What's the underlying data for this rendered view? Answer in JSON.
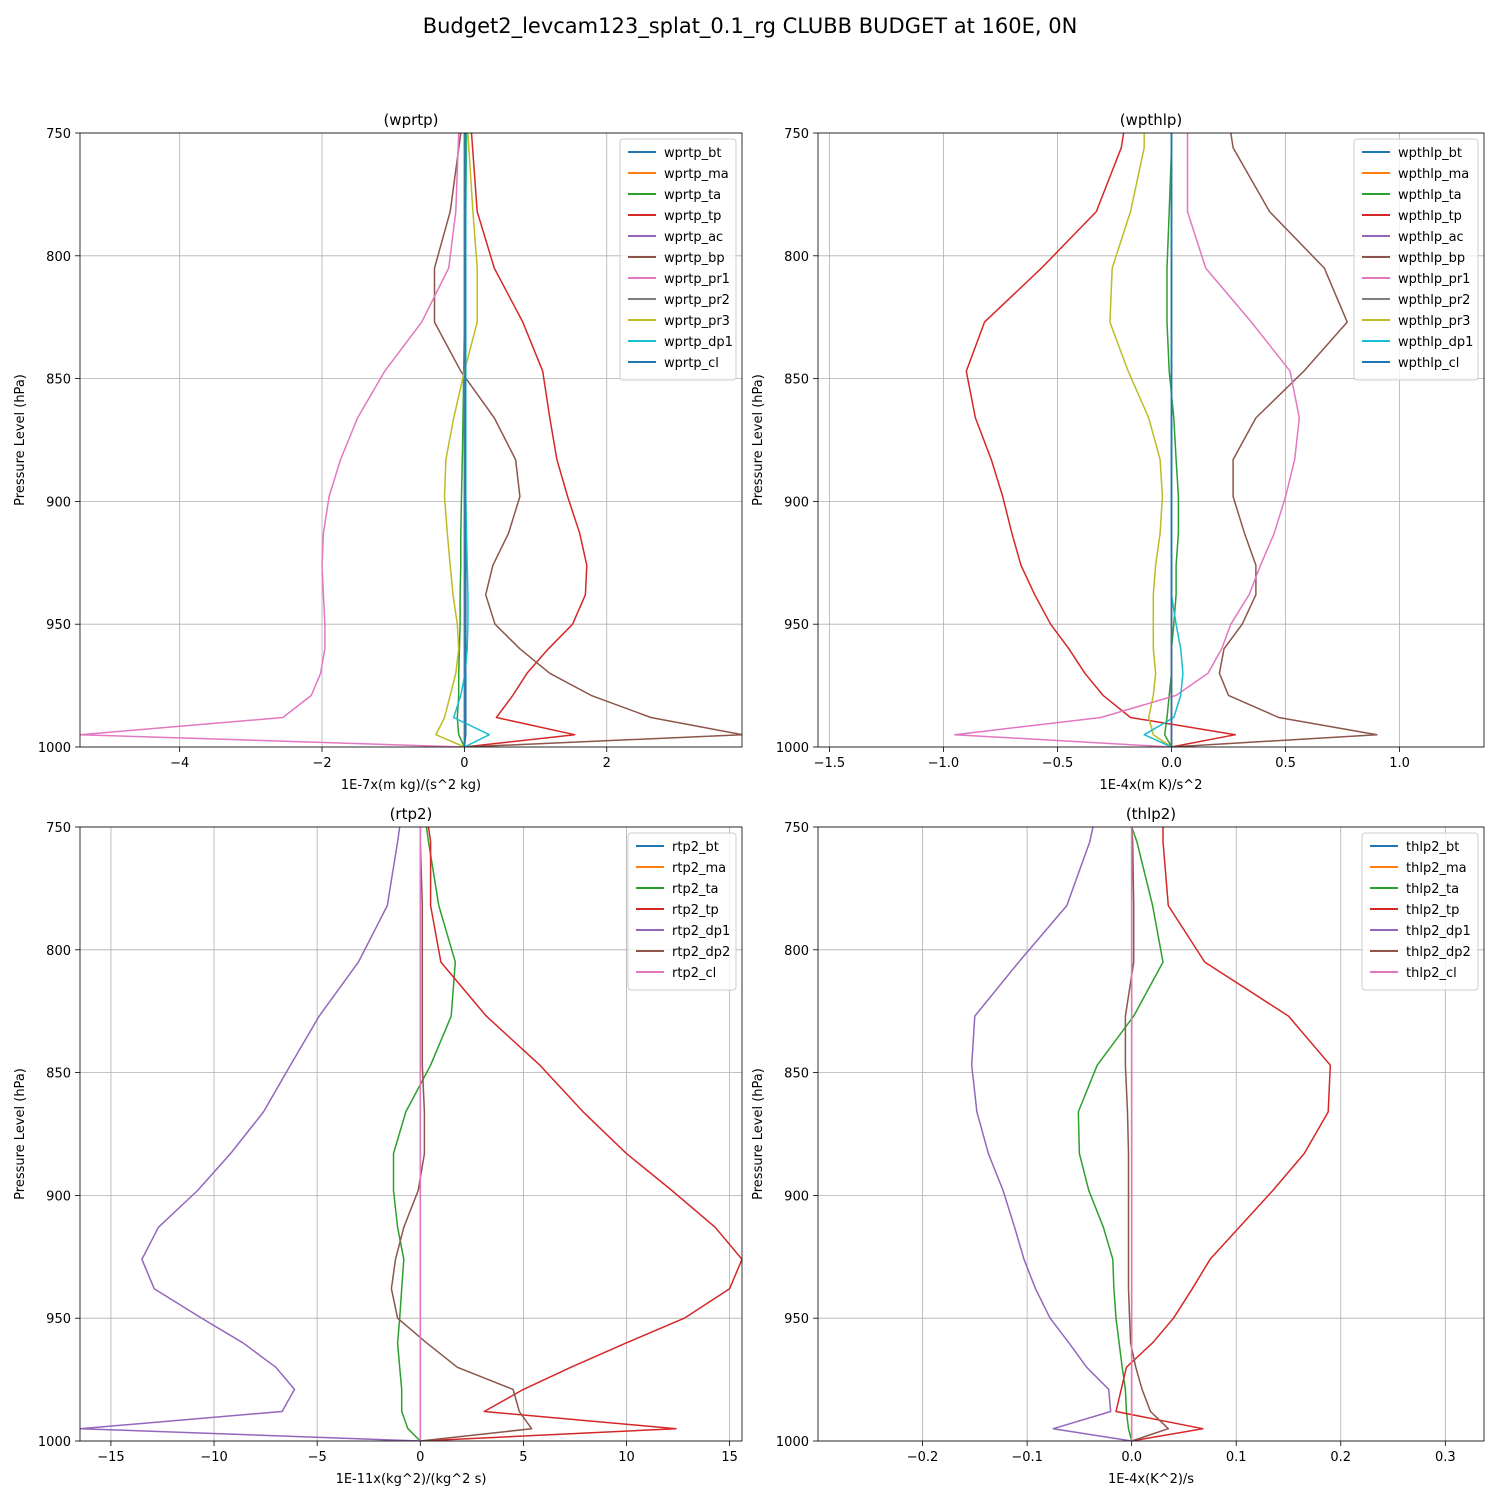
{
  "figure_title": "Budget2_levcam123_splat_0.1_rg CLUBB BUDGET at 160E, 0N",
  "chart_data": [
    {
      "type": "line",
      "title": "(wprtp)",
      "xlabel": "1E-7x(m kg)/(s^2 kg)",
      "ylabel": "Pressure Level (hPa)",
      "xlim": [
        -5.4,
        3.9
      ],
      "ylim": [
        1000,
        750
      ],
      "xticks": [
        -4,
        -2,
        0,
        2
      ],
      "yticks": [
        750,
        800,
        850,
        900,
        950,
        1000
      ],
      "grid": true,
      "legend": "top-right",
      "levels": [
        750,
        782,
        805,
        827,
        847,
        866,
        883,
        898,
        913,
        926,
        938,
        950,
        960,
        970,
        979,
        988,
        995,
        1000
      ],
      "series": [
        {
          "name": "wprtp_bt",
          "color": "#1f77b4",
          "values": [
            0.02,
            0.02,
            0.02,
            0.02,
            0.02,
            0.02,
            0.02,
            0.02,
            0.02,
            0.02,
            0.02,
            0.02,
            0.02,
            0.02,
            0.02,
            0.02,
            0.02,
            0.0
          ]
        },
        {
          "name": "wprtp_ma",
          "color": "#ff7f0e",
          "values": [
            0,
            0,
            0,
            0,
            0,
            0,
            0,
            0,
            0,
            0,
            0,
            0,
            0,
            0,
            0,
            0,
            0,
            0
          ]
        },
        {
          "name": "wprtp_ta",
          "color": "#2ca02c",
          "values": [
            0.03,
            0.02,
            0.01,
            0.0,
            -0.01,
            -0.02,
            -0.03,
            -0.04,
            -0.05,
            -0.05,
            -0.06,
            -0.06,
            -0.07,
            -0.08,
            -0.08,
            -0.1,
            -0.08,
            0.0
          ]
        },
        {
          "name": "wprtp_tp",
          "color": "#d62728",
          "values": [
            0.1,
            0.18,
            0.42,
            0.82,
            1.1,
            1.2,
            1.3,
            1.45,
            1.62,
            1.72,
            1.7,
            1.52,
            1.18,
            0.88,
            0.68,
            0.45,
            1.55,
            0.0
          ]
        },
        {
          "name": "wprtp_ac",
          "color": "#9467bd",
          "values": [
            0,
            0,
            0,
            0,
            0,
            0,
            0,
            0,
            0,
            0,
            0,
            0,
            0,
            0,
            0,
            0,
            0,
            0
          ]
        },
        {
          "name": "wprtp_bp",
          "color": "#8c564b",
          "values": [
            -0.05,
            -0.2,
            -0.42,
            -0.42,
            -0.05,
            0.42,
            0.72,
            0.78,
            0.62,
            0.4,
            0.3,
            0.43,
            0.78,
            1.2,
            1.78,
            2.62,
            3.9,
            0.0
          ]
        },
        {
          "name": "wprtp_pr1",
          "color": "#e377c2",
          "values": [
            -0.08,
            -0.12,
            -0.22,
            -0.6,
            -1.12,
            -1.5,
            -1.74,
            -1.9,
            -1.98,
            -2.0,
            -1.98,
            -1.96,
            -1.96,
            -2.02,
            -2.15,
            -2.55,
            -5.4,
            0.0
          ]
        },
        {
          "name": "wprtp_pr2",
          "color": "#7f7f7f",
          "values": [
            0,
            0,
            0,
            0,
            0,
            0,
            0,
            0,
            0,
            0,
            0,
            0,
            0,
            0,
            0,
            0,
            0,
            0
          ]
        },
        {
          "name": "wprtp_pr3",
          "color": "#bcbd22",
          "values": [
            0.05,
            0.12,
            0.18,
            0.18,
            0.0,
            -0.15,
            -0.26,
            -0.28,
            -0.24,
            -0.2,
            -0.16,
            -0.1,
            -0.08,
            -0.12,
            -0.2,
            -0.28,
            -0.4,
            0.0
          ]
        },
        {
          "name": "wprtp_dp1",
          "color": "#17becf",
          "values": [
            0.02,
            0.02,
            0.02,
            0.02,
            0.02,
            0.02,
            0.02,
            0.02,
            0.03,
            0.04,
            0.05,
            0.05,
            0.04,
            0.01,
            -0.05,
            -0.15,
            0.35,
            0.0
          ]
        },
        {
          "name": "wprtp_cl",
          "color": "#1f77b4",
          "values": [
            0.01,
            0.01,
            0.01,
            0.01,
            0.01,
            0.01,
            0.01,
            0.01,
            0.01,
            0.01,
            0.01,
            0.01,
            0.01,
            0.01,
            0.01,
            0.01,
            0.01,
            0.0
          ]
        }
      ]
    },
    {
      "type": "line",
      "title": "(wpthlp)",
      "xlabel": "1E-4x(m K)/s^2",
      "ylabel": "Pressure Level (hPa)",
      "xlim": [
        -1.55,
        1.37
      ],
      "ylim": [
        1000,
        750
      ],
      "xticks": [
        -1.5,
        -1.0,
        -0.5,
        0.0,
        0.5,
        1.0
      ],
      "yticks": [
        750,
        800,
        850,
        900,
        950,
        1000
      ],
      "grid": true,
      "legend": "top-right",
      "levels": [
        750,
        756,
        782,
        805,
        827,
        847,
        866,
        883,
        898,
        913,
        926,
        938,
        950,
        960,
        970,
        979,
        988,
        995,
        1000
      ],
      "series": [
        {
          "name": "wpthlp_bt",
          "color": "#1f77b4",
          "values": [
            0,
            0,
            0,
            0,
            0,
            0,
            0,
            0,
            0,
            0,
            0,
            0,
            0,
            0,
            0,
            0,
            0,
            0,
            0
          ]
        },
        {
          "name": "wpthlp_ma",
          "color": "#ff7f0e",
          "values": [
            0,
            0,
            0,
            0,
            0,
            0,
            0,
            0,
            0,
            0,
            0,
            0,
            0,
            0,
            0,
            0,
            0,
            0,
            0
          ]
        },
        {
          "name": "wpthlp_ta",
          "color": "#2ca02c",
          "values": [
            0.0,
            0.0,
            -0.01,
            -0.02,
            -0.02,
            -0.01,
            0.01,
            0.02,
            0.03,
            0.03,
            0.02,
            0.02,
            0.01,
            0.0,
            0.0,
            -0.01,
            -0.02,
            -0.03,
            0.0
          ]
        },
        {
          "name": "wpthlp_tp",
          "color": "#d62728",
          "values": [
            -0.21,
            -0.22,
            -0.33,
            -0.57,
            -0.82,
            -0.9,
            -0.86,
            -0.79,
            -0.74,
            -0.7,
            -0.66,
            -0.6,
            -0.53,
            -0.45,
            -0.38,
            -0.3,
            -0.18,
            0.28,
            0.0
          ]
        },
        {
          "name": "wpthlp_ac",
          "color": "#9467bd",
          "values": [
            0,
            0,
            0,
            0,
            0,
            0,
            0,
            0,
            0,
            0,
            0,
            0,
            0,
            0,
            0,
            0,
            0,
            0,
            0
          ]
        },
        {
          "name": "wpthlp_bp",
          "color": "#8c564b",
          "values": [
            0.26,
            0.27,
            0.43,
            0.67,
            0.77,
            0.58,
            0.37,
            0.27,
            0.27,
            0.32,
            0.37,
            0.37,
            0.31,
            0.23,
            0.21,
            0.25,
            0.47,
            0.9,
            0.0
          ]
        },
        {
          "name": "wpthlp_pr1",
          "color": "#e377c2",
          "values": [
            0.07,
            0.07,
            0.07,
            0.15,
            0.35,
            0.52,
            0.56,
            0.54,
            0.5,
            0.45,
            0.39,
            0.34,
            0.26,
            0.22,
            0.16,
            0.02,
            -0.31,
            -0.95,
            0.0
          ]
        },
        {
          "name": "wpthlp_pr2",
          "color": "#7f7f7f",
          "values": [
            0,
            0,
            0,
            0,
            0,
            0,
            0,
            0,
            0,
            0,
            0,
            0,
            0,
            0,
            0,
            0,
            0,
            0,
            0
          ]
        },
        {
          "name": "wpthlp_pr3",
          "color": "#bcbd22",
          "values": [
            -0.12,
            -0.12,
            -0.18,
            -0.26,
            -0.27,
            -0.19,
            -0.1,
            -0.05,
            -0.04,
            -0.05,
            -0.07,
            -0.08,
            -0.08,
            -0.08,
            -0.07,
            -0.08,
            -0.1,
            -0.08,
            0.0
          ]
        },
        {
          "name": "wpthlp_dp1",
          "color": "#17becf",
          "values": [
            0,
            0,
            0,
            0,
            0,
            0,
            0,
            0,
            0,
            0,
            0,
            0,
            0.02,
            0.04,
            0.05,
            0.04,
            0.01,
            -0.12,
            0.0
          ]
        },
        {
          "name": "wpthlp_cl",
          "color": "#1f77b4",
          "values": [
            0,
            0,
            0,
            0,
            0,
            0,
            0,
            0,
            0,
            0,
            0,
            0,
            0,
            0,
            0,
            0,
            0,
            0,
            0
          ]
        }
      ]
    },
    {
      "type": "line",
      "title": "(rtp2)",
      "xlabel": "1E-11x(kg^2)/(kg^2 s)",
      "ylabel": "Pressure Level (hPa)",
      "xlim": [
        -16.5,
        15.6
      ],
      "ylim": [
        1000,
        750
      ],
      "xticks": [
        -15,
        -10,
        -5,
        0,
        5,
        10,
        15
      ],
      "yticks": [
        750,
        800,
        850,
        900,
        950,
        1000
      ],
      "grid": true,
      "legend": "top-right",
      "levels": [
        750,
        756,
        782,
        805,
        827,
        847,
        866,
        883,
        898,
        913,
        926,
        938,
        950,
        960,
        970,
        979,
        988,
        995,
        1000
      ],
      "series": [
        {
          "name": "rtp2_bt",
          "color": "#1f77b4",
          "values": [
            0,
            0,
            0,
            0,
            0,
            0,
            0,
            0,
            0,
            0,
            0,
            0,
            0,
            0,
            0,
            0,
            0,
            0,
            0
          ]
        },
        {
          "name": "rtp2_ma",
          "color": "#ff7f0e",
          "values": [
            0,
            0,
            0,
            0,
            0,
            0,
            0,
            0,
            0,
            0,
            0,
            0,
            0,
            0,
            0,
            0,
            0,
            0,
            0
          ]
        },
        {
          "name": "rtp2_ta",
          "color": "#2ca02c",
          "values": [
            0.3,
            0.4,
            0.9,
            1.7,
            1.5,
            0.5,
            -0.7,
            -1.3,
            -1.3,
            -1.1,
            -0.8,
            -0.9,
            -1.0,
            -1.1,
            -1.0,
            -0.9,
            -0.9,
            -0.6,
            0.0
          ]
        },
        {
          "name": "rtp2_tp",
          "color": "#d62728",
          "values": [
            0.4,
            0.5,
            0.5,
            1.0,
            3.2,
            5.8,
            7.9,
            10.0,
            12.2,
            14.3,
            15.6,
            15.0,
            12.8,
            10.0,
            7.3,
            5.0,
            3.1,
            12.4,
            0.0
          ]
        },
        {
          "name": "rtp2_dp1",
          "color": "#9467bd",
          "values": [
            -1.0,
            -1.1,
            -1.6,
            -3.0,
            -4.9,
            -6.3,
            -7.6,
            -9.2,
            -10.8,
            -12.7,
            -13.5,
            -12.9,
            -10.6,
            -8.6,
            -7.0,
            -6.1,
            -6.7,
            -16.5,
            0.0
          ]
        },
        {
          "name": "rtp2_dp2",
          "color": "#8c564b",
          "values": [
            0.0,
            0.0,
            0.1,
            0.1,
            0.1,
            0.1,
            0.2,
            0.2,
            -0.1,
            -0.8,
            -1.2,
            -1.4,
            -1.1,
            0.3,
            1.8,
            4.5,
            4.8,
            5.4,
            0.0
          ]
        },
        {
          "name": "rtp2_cl",
          "color": "#e377c2",
          "values": [
            0,
            0,
            0,
            0,
            0,
            0,
            0,
            0,
            0,
            0,
            0,
            0,
            0,
            0,
            0,
            0,
            0,
            0,
            0
          ]
        }
      ]
    },
    {
      "type": "line",
      "title": "(thlp2)",
      "xlabel": "1E-4x(K^2)/s",
      "ylabel": "Pressure Level (hPa)",
      "xlim": [
        -0.3,
        0.337
      ],
      "ylim": [
        1000,
        750
      ],
      "xticks": [
        -0.2,
        -0.1,
        0.0,
        0.1,
        0.2,
        0.3
      ],
      "yticks": [
        750,
        800,
        850,
        900,
        950,
        1000
      ],
      "grid": true,
      "legend": "top-right",
      "levels": [
        750,
        756,
        782,
        805,
        827,
        847,
        866,
        883,
        898,
        913,
        926,
        938,
        950,
        960,
        970,
        979,
        988,
        995,
        1000
      ],
      "series": [
        {
          "name": "thlp2_bt",
          "color": "#1f77b4",
          "values": [
            0,
            0,
            0,
            0,
            0,
            0,
            0,
            0,
            0,
            0,
            0,
            0,
            0,
            0,
            0,
            0,
            0,
            0,
            0
          ]
        },
        {
          "name": "thlp2_ma",
          "color": "#ff7f0e",
          "values": [
            0,
            0,
            0,
            0,
            0,
            0,
            0,
            0,
            0,
            0,
            0,
            0,
            0,
            0,
            0,
            0,
            0,
            0,
            0
          ]
        },
        {
          "name": "thlp2_ta",
          "color": "#2ca02c",
          "values": [
            0.0,
            0.005,
            0.02,
            0.03,
            0.002,
            -0.033,
            -0.051,
            -0.05,
            -0.041,
            -0.027,
            -0.018,
            -0.017,
            -0.015,
            -0.012,
            -0.009,
            -0.006,
            -0.005,
            -0.003,
            0.0
          ]
        },
        {
          "name": "thlp2_tp",
          "color": "#d62728",
          "values": [
            0.03,
            0.03,
            0.035,
            0.07,
            0.15,
            0.19,
            0.188,
            0.165,
            0.135,
            0.103,
            0.075,
            0.058,
            0.04,
            0.02,
            -0.005,
            -0.01,
            -0.015,
            0.068,
            0.0
          ]
        },
        {
          "name": "thlp2_dp1",
          "color": "#9467bd",
          "values": [
            -0.037,
            -0.04,
            -0.062,
            -0.108,
            -0.15,
            -0.153,
            -0.148,
            -0.137,
            -0.123,
            -0.112,
            -0.103,
            -0.092,
            -0.078,
            -0.06,
            -0.043,
            -0.022,
            -0.02,
            -0.075,
            0.0
          ]
        },
        {
          "name": "thlp2_dp2",
          "color": "#8c564b",
          "values": [
            0.0,
            0.001,
            0.002,
            0.002,
            -0.006,
            -0.006,
            -0.004,
            -0.003,
            -0.003,
            -0.003,
            -0.003,
            -0.003,
            -0.002,
            -0.001,
            0.004,
            0.01,
            0.018,
            0.035,
            0.0
          ]
        },
        {
          "name": "thlp2_cl",
          "color": "#e377c2",
          "values": [
            0,
            0,
            0,
            0,
            0,
            0,
            0,
            0,
            0,
            0,
            0,
            0,
            0,
            0,
            0,
            0,
            0,
            0,
            0
          ]
        }
      ]
    }
  ]
}
